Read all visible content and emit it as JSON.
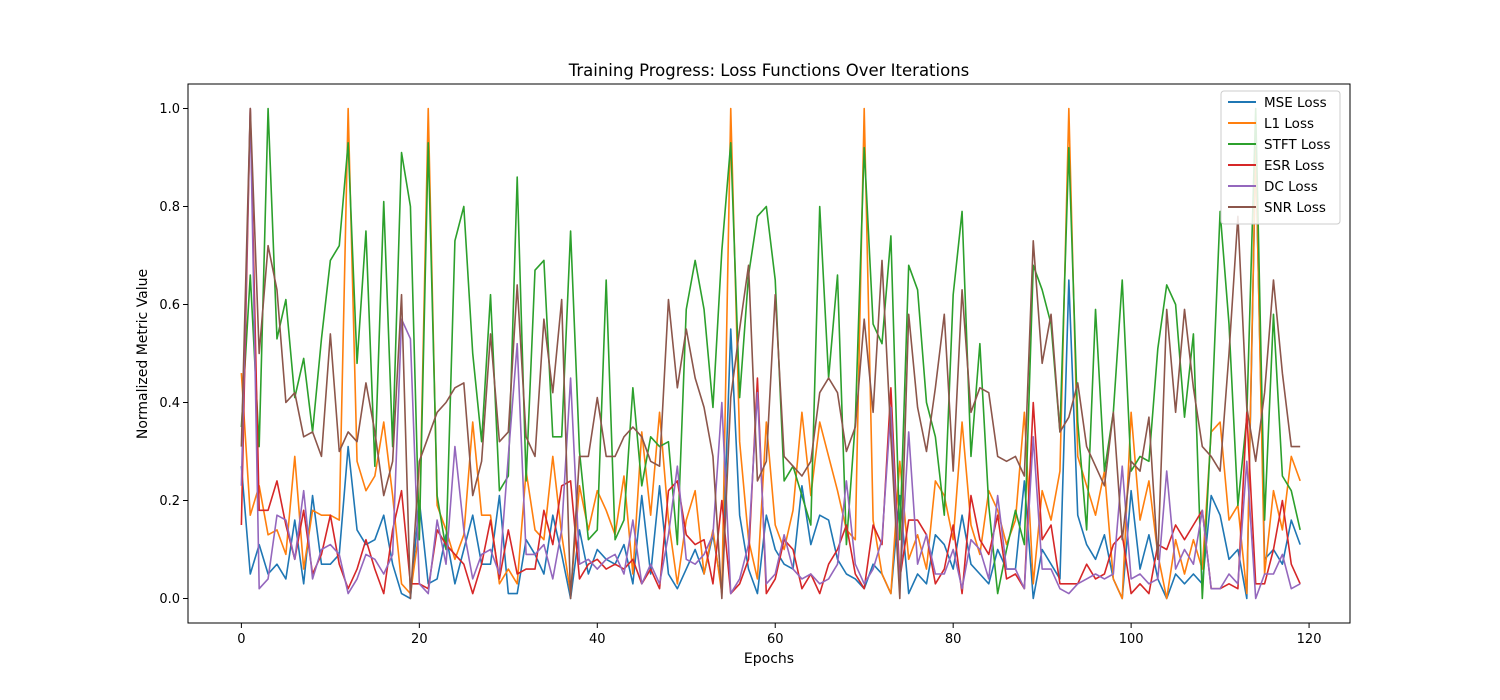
{
  "chart_data": {
    "type": "line",
    "title": "Training Progress: Loss Functions Over Iterations",
    "xlabel": "Epochs",
    "ylabel": "Normalized Metric Value",
    "xlim": [
      -6.0,
      124.6
    ],
    "ylim": [
      -0.05,
      1.05
    ],
    "xticks": [
      0,
      20,
      40,
      60,
      80,
      100,
      120
    ],
    "yticks": [
      0.0,
      0.2,
      0.4,
      0.6,
      0.8,
      1.0
    ],
    "xtick_labels": [
      "0",
      "20",
      "40",
      "60",
      "80",
      "100",
      "120"
    ],
    "ytick_labels": [
      "0.0",
      "0.2",
      "0.4",
      "0.6",
      "0.8",
      "1.0"
    ],
    "grid": false,
    "legend_position": "top-right",
    "series": [
      {
        "name": "MSE Loss",
        "color": "#1f77b4",
        "values": [
          0.27,
          0.05,
          0.11,
          0.05,
          0.07,
          0.04,
          0.16,
          0.03,
          0.21,
          0.07,
          0.07,
          0.09,
          0.31,
          0.14,
          0.11,
          0.12,
          0.17,
          0.07,
          0.01,
          0.0,
          0.2,
          0.03,
          0.04,
          0.13,
          0.03,
          0.1,
          0.17,
          0.07,
          0.07,
          0.21,
          0.01,
          0.01,
          0.12,
          0.09,
          0.05,
          0.17,
          0.09,
          0.0,
          0.14,
          0.05,
          0.1,
          0.08,
          0.07,
          0.11,
          0.03,
          0.21,
          0.05,
          0.23,
          0.05,
          0.02,
          0.06,
          0.1,
          0.05,
          0.13,
          0.02,
          0.55,
          0.17,
          0.06,
          0.01,
          0.17,
          0.1,
          0.07,
          0.06,
          0.23,
          0.11,
          0.17,
          0.16,
          0.08,
          0.05,
          0.04,
          0.02,
          0.07,
          0.05,
          0.01,
          0.21,
          0.01,
          0.05,
          0.03,
          0.13,
          0.11,
          0.06,
          0.17,
          0.07,
          0.05,
          0.03,
          0.1,
          0.06,
          0.06,
          0.24,
          0.0,
          0.1,
          0.07,
          0.04,
          0.65,
          0.17,
          0.11,
          0.08,
          0.13,
          0.04,
          0.0,
          0.22,
          0.06,
          0.13,
          0.04,
          0.0,
          0.05,
          0.03,
          0.05,
          0.03,
          0.21,
          0.17,
          0.08,
          0.1,
          0.0,
          0.91,
          0.08,
          0.1,
          0.07,
          0.16,
          0.11
        ]
      },
      {
        "name": "L1 Loss",
        "color": "#ff7f0e",
        "values": [
          0.46,
          0.17,
          0.23,
          0.13,
          0.14,
          0.09,
          0.29,
          0.06,
          0.18,
          0.17,
          0.17,
          0.16,
          1.0,
          0.28,
          0.22,
          0.25,
          0.36,
          0.21,
          0.03,
          0.01,
          0.14,
          1.0,
          0.19,
          0.14,
          0.08,
          0.13,
          0.36,
          0.17,
          0.17,
          0.03,
          0.06,
          0.03,
          0.26,
          0.14,
          0.12,
          0.29,
          0.13,
          0.01,
          0.23,
          0.14,
          0.22,
          0.18,
          0.13,
          0.25,
          0.05,
          0.34,
          0.17,
          0.38,
          0.16,
          0.03,
          0.16,
          0.22,
          0.05,
          0.14,
          0.01,
          1.0,
          0.32,
          0.12,
          0.04,
          0.36,
          0.15,
          0.1,
          0.18,
          0.38,
          0.21,
          0.36,
          0.29,
          0.22,
          0.14,
          0.12,
          1.0,
          0.16,
          0.05,
          0.01,
          0.28,
          0.08,
          0.13,
          0.06,
          0.24,
          0.21,
          0.12,
          0.36,
          0.15,
          0.09,
          0.22,
          0.18,
          0.11,
          0.16,
          0.38,
          0.03,
          0.22,
          0.16,
          0.26,
          1.0,
          0.29,
          0.23,
          0.17,
          0.26,
          0.04,
          0.0,
          0.38,
          0.16,
          0.24,
          0.09,
          0.0,
          0.12,
          0.05,
          0.12,
          0.06,
          0.34,
          0.36,
          0.16,
          0.19,
          0.01,
          0.92,
          0.05,
          0.22,
          0.14,
          0.29,
          0.24
        ]
      },
      {
        "name": "STFT Loss",
        "color": "#2ca02c",
        "values": [
          0.35,
          0.66,
          0.31,
          1.0,
          0.53,
          0.61,
          0.41,
          0.49,
          0.34,
          0.53,
          0.69,
          0.72,
          0.93,
          0.48,
          0.75,
          0.27,
          0.81,
          0.31,
          0.91,
          0.8,
          0.12,
          0.93,
          0.21,
          0.1,
          0.73,
          0.8,
          0.5,
          0.32,
          0.62,
          0.22,
          0.25,
          0.86,
          0.24,
          0.67,
          0.69,
          0.33,
          0.33,
          0.75,
          0.3,
          0.12,
          0.14,
          0.65,
          0.12,
          0.16,
          0.43,
          0.23,
          0.33,
          0.31,
          0.32,
          0.11,
          0.59,
          0.69,
          0.59,
          0.39,
          0.71,
          0.93,
          0.41,
          0.66,
          0.78,
          0.8,
          0.65,
          0.24,
          0.27,
          0.21,
          0.15,
          0.8,
          0.45,
          0.66,
          0.11,
          0.36,
          0.92,
          0.56,
          0.52,
          0.74,
          0.12,
          0.68,
          0.63,
          0.4,
          0.33,
          0.17,
          0.62,
          0.79,
          0.29,
          0.52,
          0.19,
          0.01,
          0.1,
          0.18,
          0.11,
          0.68,
          0.63,
          0.56,
          0.34,
          0.92,
          0.36,
          0.14,
          0.59,
          0.26,
          0.38,
          0.65,
          0.26,
          0.29,
          0.28,
          0.51,
          0.64,
          0.6,
          0.37,
          0.54,
          0.0,
          0.35,
          0.79,
          0.56,
          0.19,
          0.37,
          1.0,
          0.16,
          0.58,
          0.25,
          0.22,
          0.14
        ]
      },
      {
        "name": "ESR Loss",
        "color": "#d62728",
        "values": [
          0.15,
          1.0,
          0.18,
          0.18,
          0.24,
          0.15,
          0.08,
          0.18,
          0.05,
          0.09,
          0.17,
          0.07,
          0.02,
          0.06,
          0.12,
          0.06,
          0.01,
          0.14,
          0.22,
          0.03,
          0.03,
          0.02,
          0.14,
          0.11,
          0.09,
          0.07,
          0.01,
          0.07,
          0.16,
          0.04,
          0.14,
          0.05,
          0.06,
          0.06,
          0.18,
          0.11,
          0.23,
          0.24,
          0.04,
          0.07,
          0.08,
          0.06,
          0.07,
          0.06,
          0.08,
          0.03,
          0.06,
          0.02,
          0.22,
          0.24,
          0.13,
          0.11,
          0.12,
          0.03,
          0.2,
          0.01,
          0.03,
          0.08,
          0.45,
          0.01,
          0.04,
          0.12,
          0.1,
          0.02,
          0.05,
          0.01,
          0.07,
          0.1,
          0.15,
          0.05,
          0.02,
          0.15,
          0.11,
          0.43,
          0.04,
          0.16,
          0.16,
          0.13,
          0.03,
          0.06,
          0.15,
          0.01,
          0.21,
          0.12,
          0.09,
          0.17,
          0.04,
          0.05,
          0.02,
          0.4,
          0.12,
          0.15,
          0.03,
          0.03,
          0.03,
          0.07,
          0.04,
          0.05,
          0.11,
          0.13,
          0.01,
          0.03,
          0.01,
          0.11,
          0.1,
          0.15,
          0.12,
          0.15,
          0.18,
          0.02,
          0.02,
          0.03,
          0.02,
          0.38,
          0.03,
          0.03,
          0.1,
          0.2,
          0.07,
          0.03
        ]
      },
      {
        "name": "DC Loss",
        "color": "#9467bd",
        "values": [
          0.23,
          1.0,
          0.02,
          0.04,
          0.17,
          0.16,
          0.08,
          0.22,
          0.04,
          0.1,
          0.11,
          0.09,
          0.01,
          0.04,
          0.09,
          0.08,
          0.05,
          0.09,
          0.57,
          0.53,
          0.03,
          0.01,
          0.16,
          0.07,
          0.31,
          0.14,
          0.04,
          0.09,
          0.1,
          0.05,
          0.29,
          0.52,
          0.09,
          0.09,
          0.11,
          0.04,
          0.14,
          0.45,
          0.07,
          0.08,
          0.06,
          0.08,
          0.09,
          0.05,
          0.16,
          0.03,
          0.07,
          0.03,
          0.13,
          0.27,
          0.08,
          0.07,
          0.09,
          0.13,
          0.4,
          0.01,
          0.04,
          0.11,
          0.42,
          0.03,
          0.05,
          0.13,
          0.06,
          0.04,
          0.05,
          0.03,
          0.04,
          0.07,
          0.24,
          0.07,
          0.03,
          0.06,
          0.12,
          0.39,
          0.02,
          0.34,
          0.07,
          0.13,
          0.05,
          0.05,
          0.1,
          0.02,
          0.12,
          0.1,
          0.04,
          0.21,
          0.06,
          0.06,
          0.02,
          0.33,
          0.06,
          0.06,
          0.02,
          0.01,
          0.03,
          0.04,
          0.05,
          0.04,
          0.05,
          0.27,
          0.04,
          0.05,
          0.03,
          0.04,
          0.26,
          0.06,
          0.1,
          0.07,
          0.18,
          0.02,
          0.02,
          0.05,
          0.03,
          0.28,
          0.0,
          0.05,
          0.05,
          0.09,
          0.02,
          0.03
        ]
      },
      {
        "name": "SNR Loss",
        "color": "#8c564b",
        "values": [
          0.31,
          1.0,
          0.5,
          0.72,
          0.63,
          0.4,
          0.42,
          0.33,
          0.34,
          0.29,
          0.54,
          0.3,
          0.34,
          0.32,
          0.44,
          0.34,
          0.21,
          0.28,
          0.62,
          0.0,
          0.28,
          0.33,
          0.38,
          0.4,
          0.43,
          0.44,
          0.21,
          0.28,
          0.54,
          0.32,
          0.34,
          0.64,
          0.33,
          0.29,
          0.57,
          0.42,
          0.61,
          0.0,
          0.29,
          0.29,
          0.41,
          0.29,
          0.29,
          0.33,
          0.35,
          0.33,
          0.28,
          0.27,
          0.61,
          0.43,
          0.55,
          0.45,
          0.39,
          0.29,
          0.0,
          0.41,
          0.55,
          0.68,
          0.24,
          0.28,
          0.62,
          0.29,
          0.27,
          0.25,
          0.28,
          0.42,
          0.45,
          0.42,
          0.3,
          0.35,
          0.57,
          0.38,
          0.69,
          0.33,
          0.0,
          0.58,
          0.39,
          0.3,
          0.43,
          0.58,
          0.26,
          0.63,
          0.38,
          0.43,
          0.42,
          0.29,
          0.28,
          0.29,
          0.25,
          0.73,
          0.48,
          0.58,
          0.34,
          0.37,
          0.44,
          0.31,
          0.27,
          0.23,
          0.38,
          0.12,
          0.28,
          0.26,
          0.37,
          0.08,
          0.59,
          0.38,
          0.59,
          0.43,
          0.31,
          0.29,
          0.26,
          0.5,
          0.78,
          0.39,
          0.28,
          0.42,
          0.65,
          0.46,
          0.31,
          0.31
        ]
      }
    ]
  }
}
